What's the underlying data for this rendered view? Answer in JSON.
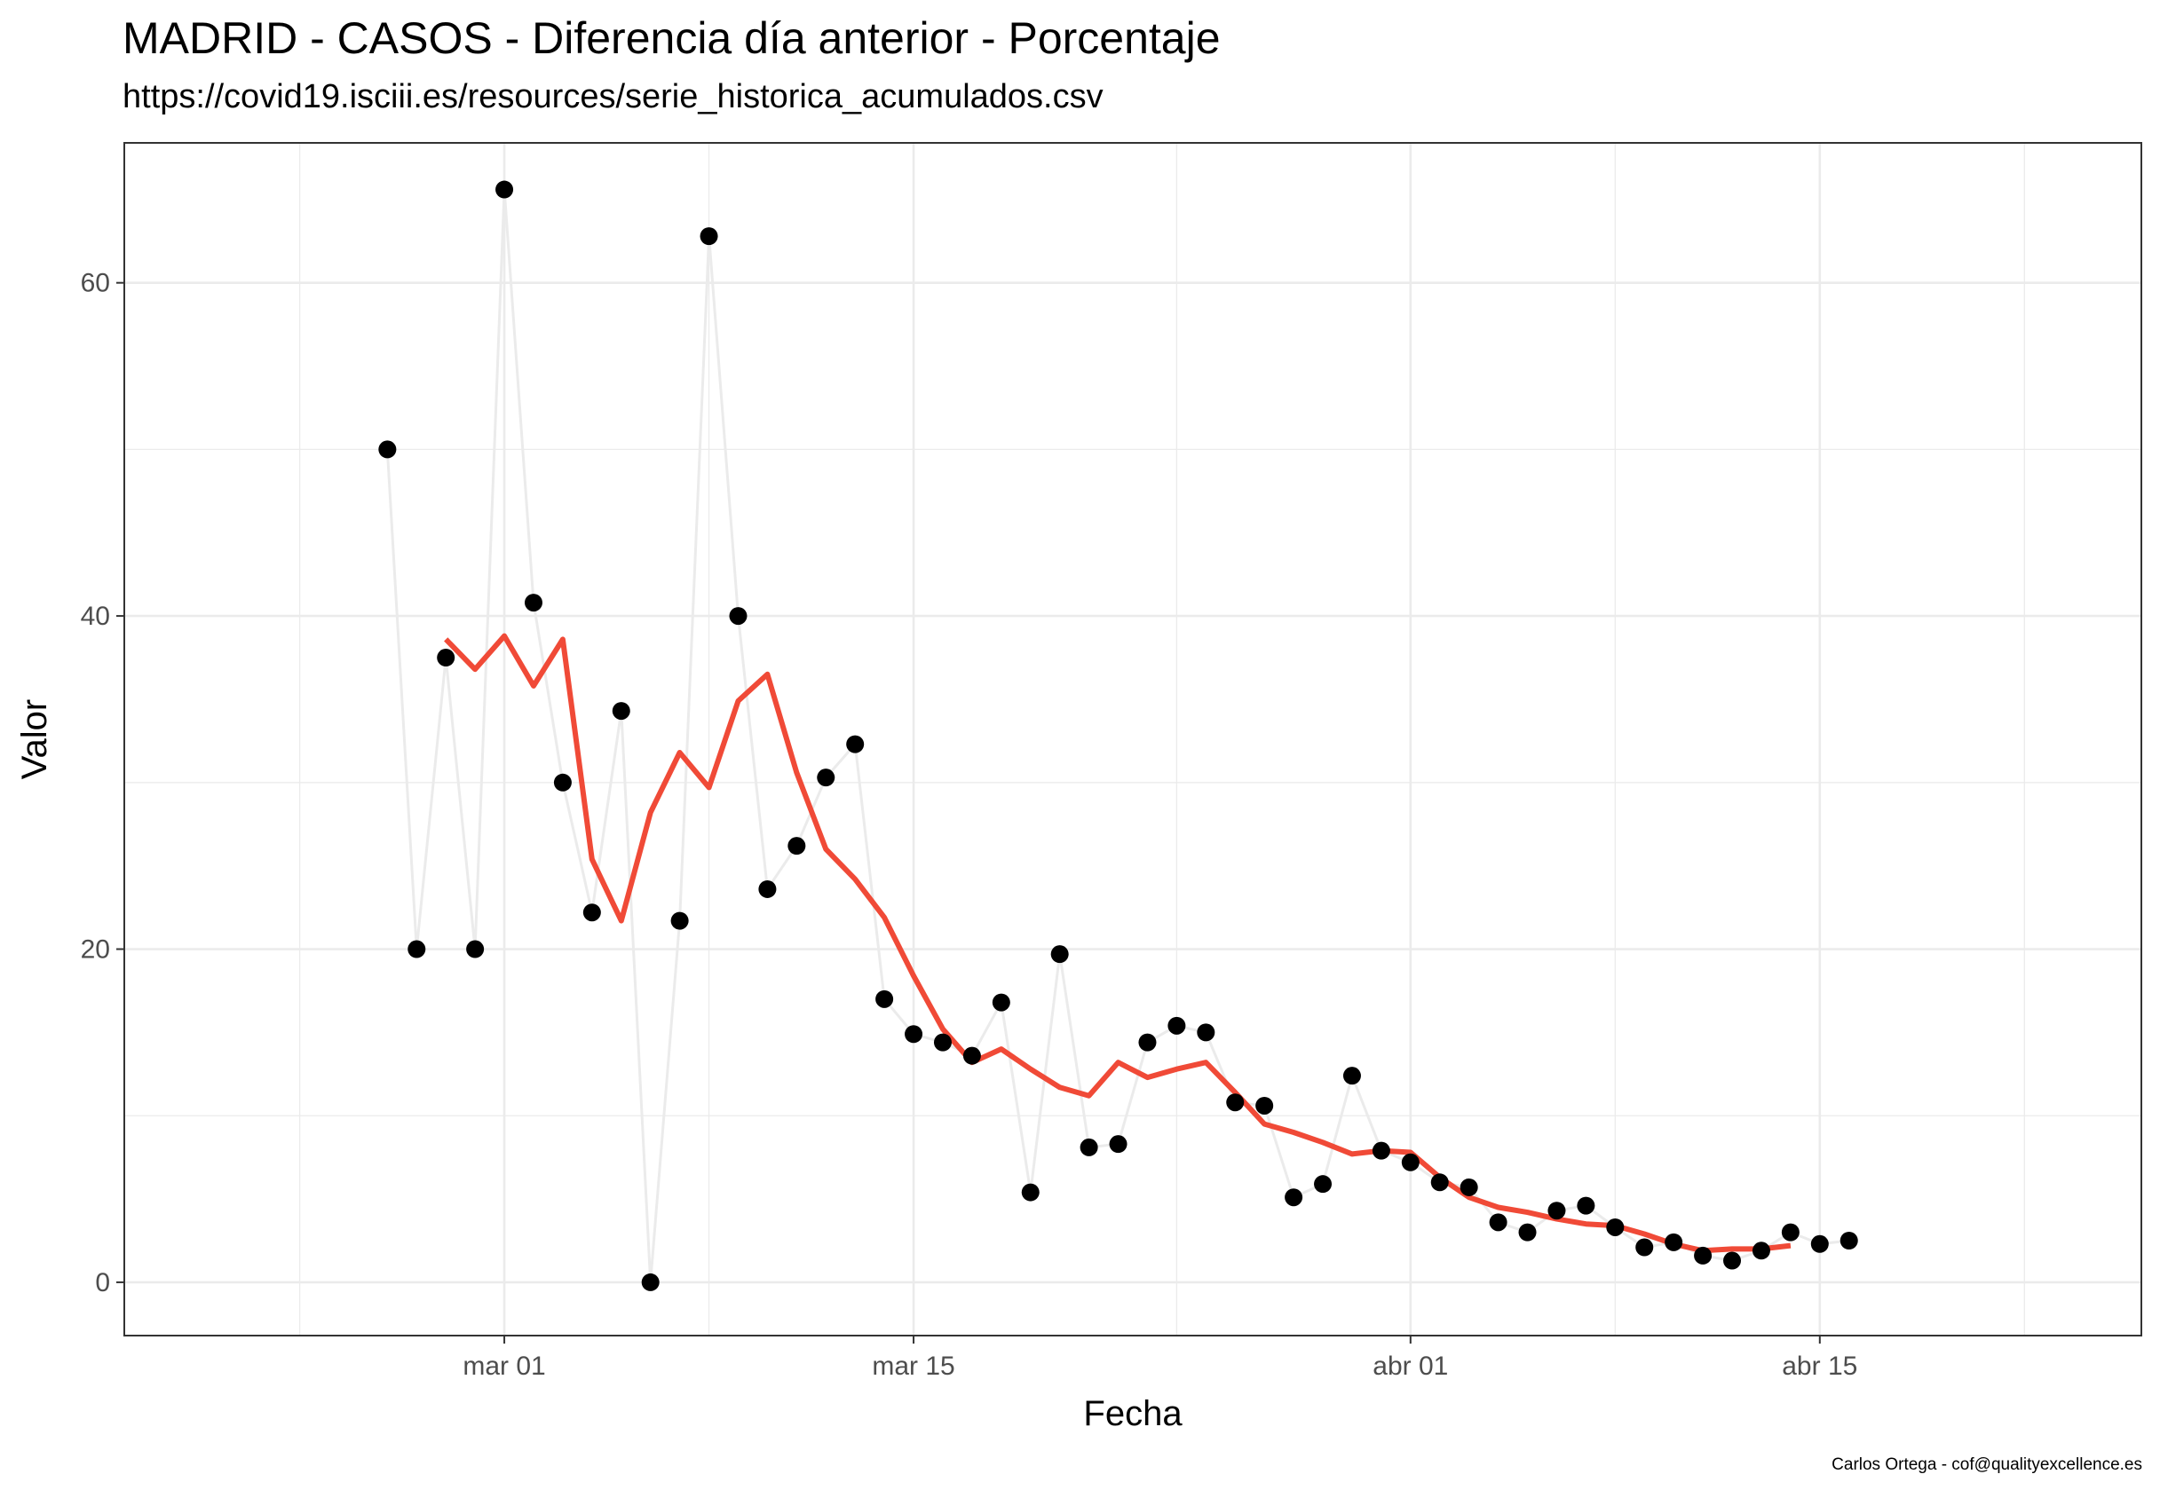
{
  "chart_data": {
    "type": "scatter",
    "title": "MADRID - CASOS - Diferencia día anterior - Porcentaje",
    "subtitle": "https://covid19.isciii.es/resources/serie_historica_acumulados.csv",
    "caption": "Carlos Ortega - cof@qualityexcellence.es",
    "xlabel": "Fecha",
    "ylabel": "Valor",
    "xlim": [
      "2020-02-17",
      "2020-04-26"
    ],
    "ylim": [
      -3.2,
      68.4
    ],
    "x_ticks": [
      {
        "date": "2020-03-01",
        "label": "mar 01"
      },
      {
        "date": "2020-03-15",
        "label": "mar 15"
      },
      {
        "date": "2020-04-01",
        "label": "abr 01"
      },
      {
        "date": "2020-04-15",
        "label": "abr 15"
      }
    ],
    "x_minor_gridlines": [
      "2020-02-23",
      "2020-03-08",
      "2020-03-24",
      "2020-04-08",
      "2020-04-22"
    ],
    "y_ticks": [
      0,
      20,
      40,
      60
    ],
    "y_minor_gridlines": [
      10,
      30,
      50
    ],
    "grid": true,
    "legend": "none",
    "colors": {
      "points": "#000000",
      "connector": "#ebebeb",
      "moving_average": "#f04a37",
      "panel_border": "#333333",
      "grid": "#ebebeb"
    },
    "series": [
      {
        "role": "points",
        "x": [
          "2020-02-26",
          "2020-02-27",
          "2020-02-28",
          "2020-02-29",
          "2020-03-01",
          "2020-03-02",
          "2020-03-03",
          "2020-03-04",
          "2020-03-05",
          "2020-03-06",
          "2020-03-07",
          "2020-03-08",
          "2020-03-09",
          "2020-03-10",
          "2020-03-11",
          "2020-03-12",
          "2020-03-13",
          "2020-03-14",
          "2020-03-15",
          "2020-03-16",
          "2020-03-17",
          "2020-03-18",
          "2020-03-19",
          "2020-03-20",
          "2020-03-21",
          "2020-03-22",
          "2020-03-23",
          "2020-03-24",
          "2020-03-25",
          "2020-03-26",
          "2020-03-27",
          "2020-03-28",
          "2020-03-29",
          "2020-03-30",
          "2020-03-31",
          "2020-04-01",
          "2020-04-02",
          "2020-04-03",
          "2020-04-04",
          "2020-04-05",
          "2020-04-06",
          "2020-04-07",
          "2020-04-08",
          "2020-04-09",
          "2020-04-10",
          "2020-04-11",
          "2020-04-12",
          "2020-04-13",
          "2020-04-14",
          "2020-04-15",
          "2020-04-16"
        ],
        "y": [
          50.0,
          20.0,
          37.5,
          20.0,
          65.6,
          40.8,
          30.0,
          22.2,
          34.3,
          0.0,
          21.7,
          62.8,
          40.0,
          23.6,
          26.2,
          30.3,
          32.3,
          17.0,
          14.9,
          14.4,
          13.6,
          16.8,
          5.4,
          19.7,
          8.1,
          8.3,
          14.4,
          15.4,
          15.0,
          10.8,
          10.6,
          5.1,
          5.9,
          12.4,
          7.9,
          7.2,
          6.0,
          5.7,
          3.6,
          3.0,
          4.3,
          4.6,
          3.3,
          2.1,
          2.4,
          1.6,
          1.3,
          1.9,
          3.0,
          2.3,
          2.5
        ]
      },
      {
        "role": "moving-average",
        "x": [
          "2020-02-28",
          "2020-02-29",
          "2020-03-01",
          "2020-03-02",
          "2020-03-03",
          "2020-03-04",
          "2020-03-05",
          "2020-03-06",
          "2020-03-07",
          "2020-03-08",
          "2020-03-09",
          "2020-03-10",
          "2020-03-11",
          "2020-03-12",
          "2020-03-13",
          "2020-03-14",
          "2020-03-15",
          "2020-03-16",
          "2020-03-17",
          "2020-03-18",
          "2020-03-19",
          "2020-03-20",
          "2020-03-21",
          "2020-03-22",
          "2020-03-23",
          "2020-03-24",
          "2020-03-25",
          "2020-03-26",
          "2020-03-27",
          "2020-03-28",
          "2020-03-29",
          "2020-03-30",
          "2020-03-31",
          "2020-04-01",
          "2020-04-02",
          "2020-04-03",
          "2020-04-04",
          "2020-04-05",
          "2020-04-06",
          "2020-04-07",
          "2020-04-08",
          "2020-04-09",
          "2020-04-10",
          "2020-04-11",
          "2020-04-12",
          "2020-04-13",
          "2020-04-14"
        ],
        "y": [
          38.6,
          36.8,
          38.8,
          35.8,
          38.6,
          25.4,
          21.7,
          28.2,
          31.8,
          29.7,
          34.9,
          36.5,
          30.6,
          26.0,
          24.2,
          21.9,
          18.4,
          15.2,
          13.2,
          14.0,
          12.8,
          11.7,
          11.2,
          13.2,
          12.3,
          12.8,
          13.2,
          11.4,
          9.5,
          9.0,
          8.4,
          7.7,
          7.9,
          7.8,
          6.3,
          5.1,
          4.5,
          4.2,
          3.8,
          3.5,
          3.4,
          2.9,
          2.3,
          1.9,
          2.0,
          2.0,
          2.2
        ]
      }
    ]
  }
}
